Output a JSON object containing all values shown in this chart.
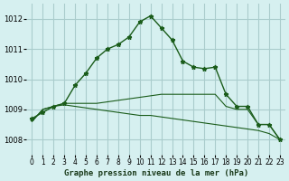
{
  "title": "Graphe pression niveau de la mer (hPa)",
  "background_color": "#d6f0f0",
  "grid_color": "#aacccc",
  "line_color": "#1a5c1a",
  "x_labels": [
    "0",
    "1",
    "2",
    "3",
    "4",
    "5",
    "6",
    "7",
    "8",
    "9",
    "10",
    "11",
    "12",
    "13",
    "14",
    "15",
    "16",
    "17",
    "18",
    "19",
    "20",
    "21",
    "22",
    "23"
  ],
  "xlim": [
    -0.5,
    23.5
  ],
  "ylim": [
    1007.5,
    1012.5
  ],
  "yticks": [
    1008,
    1009,
    1010,
    1011,
    1012
  ],
  "line1_x": [
    0,
    1,
    2,
    3,
    4,
    5,
    6,
    7,
    8,
    9,
    10,
    11,
    12,
    13,
    14,
    15,
    16,
    17,
    18,
    19,
    20,
    21,
    22,
    23
  ],
  "line1_y": [
    1008.7,
    1008.9,
    1009.1,
    1009.2,
    1009.8,
    1010.2,
    1010.7,
    1011.0,
    1011.15,
    1011.4,
    1011.9,
    1012.1,
    1011.7,
    1011.3,
    1010.6,
    1010.4,
    1010.35,
    1010.4,
    1009.5,
    1009.1,
    1009.1,
    1008.5,
    1008.5,
    1008.0
  ],
  "line2_x": [
    0,
    1,
    2,
    3,
    4,
    5,
    6,
    7,
    8,
    9,
    10,
    11,
    12,
    13,
    14,
    15,
    16,
    17,
    18,
    19,
    20,
    21,
    22,
    23
  ],
  "line2_y": [
    1008.6,
    1009.0,
    1009.1,
    1009.2,
    1009.2,
    1009.2,
    1009.2,
    1009.25,
    1009.3,
    1009.35,
    1009.4,
    1009.45,
    1009.5,
    1009.5,
    1009.5,
    1009.5,
    1009.5,
    1009.5,
    1009.1,
    1009.0,
    1009.0,
    1008.5,
    1008.5,
    1008.0
  ],
  "line3_x": [
    0,
    1,
    2,
    3,
    4,
    5,
    6,
    7,
    8,
    9,
    10,
    11,
    12,
    13,
    14,
    15,
    16,
    17,
    18,
    19,
    20,
    21,
    22,
    23
  ],
  "line3_y": [
    1008.6,
    1009.0,
    1009.1,
    1009.15,
    1009.1,
    1009.05,
    1009.0,
    1008.95,
    1008.9,
    1008.85,
    1008.8,
    1008.8,
    1008.75,
    1008.7,
    1008.65,
    1008.6,
    1008.55,
    1008.5,
    1008.45,
    1008.4,
    1008.35,
    1008.3,
    1008.2,
    1008.0
  ]
}
